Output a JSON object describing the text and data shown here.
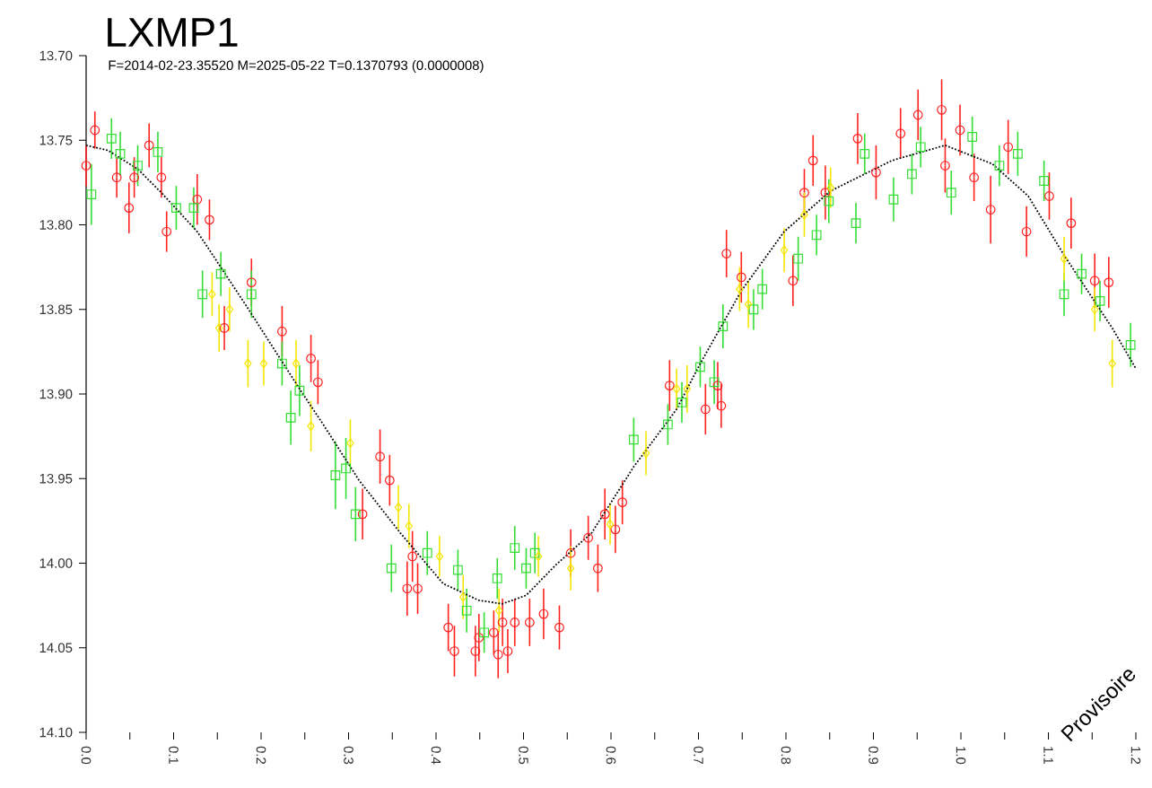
{
  "chart_data": {
    "type": "scatter",
    "title": "LXMP1",
    "subtitle": "F=2014-02-23.35520 M=2025-05-22 T=0.1370793 (0.0000008)",
    "annotations": [
      "Provisoire"
    ],
    "xlim": [
      0,
      1.2
    ],
    "ylim": [
      14.1,
      13.7
    ],
    "xticks": [
      {
        "value": 0,
        "label": "0.0"
      },
      {
        "value": 0.05,
        "label": null
      },
      {
        "value": 0.1,
        "label": "0.1"
      },
      {
        "value": 0.15,
        "label": null
      },
      {
        "value": 0.2,
        "label": "0.2"
      },
      {
        "value": 0.25,
        "label": null
      },
      {
        "value": 0.3,
        "label": "0.3"
      },
      {
        "value": 0.35,
        "label": null
      },
      {
        "value": 0.4,
        "label": "0.4"
      },
      {
        "value": 0.45,
        "label": null
      },
      {
        "value": 0.5,
        "label": "0.5"
      },
      {
        "value": 0.55,
        "label": null
      },
      {
        "value": 0.6,
        "label": "0.6"
      },
      {
        "value": 0.65,
        "label": null
      },
      {
        "value": 0.7,
        "label": "0.7"
      },
      {
        "value": 0.75,
        "label": null
      },
      {
        "value": 0.8,
        "label": "0.8"
      },
      {
        "value": 0.85,
        "label": null
      },
      {
        "value": 0.9,
        "label": "0.9"
      },
      {
        "value": 0.95,
        "label": null
      },
      {
        "value": 1.0,
        "label": "1.0"
      },
      {
        "value": 1.05,
        "label": null
      },
      {
        "value": 1.1,
        "label": "1.1"
      },
      {
        "value": 1.15,
        "label": null
      },
      {
        "value": 1.2,
        "label": "1.2"
      }
    ],
    "yticks": [
      {
        "value": 13.7,
        "label": "13.70"
      },
      {
        "value": 13.75,
        "label": "13.75"
      },
      {
        "value": 13.8,
        "label": "13.80"
      },
      {
        "value": 13.85,
        "label": "13.85"
      },
      {
        "value": 13.9,
        "label": "13.90"
      },
      {
        "value": 13.95,
        "label": "13.95"
      },
      {
        "value": 14.0,
        "label": "14.00"
      },
      {
        "value": 14.05,
        "label": "14.05"
      },
      {
        "value": 14.1,
        "label": "14.10"
      }
    ],
    "series": [
      {
        "color": "#ff2020",
        "marker": "circle",
        "x": [
          0.0,
          0.01,
          0.035,
          0.049,
          0.055,
          0.072,
          0.086,
          0.092,
          0.127,
          0.141,
          0.158,
          0.189,
          0.224,
          0.257,
          0.265,
          0.316,
          0.336,
          0.347,
          0.367,
          0.373,
          0.379,
          0.414,
          0.421,
          0.445,
          0.449,
          0.466,
          0.471,
          0.476,
          0.482,
          0.49,
          0.507,
          0.523,
          0.541,
          0.554,
          0.574,
          0.585,
          0.593,
          0.605,
          0.613,
          0.667,
          0.708,
          0.722,
          0.726,
          0.732,
          0.749,
          0.808,
          0.821,
          0.831,
          0.845,
          0.882,
          0.903,
          0.931,
          0.951,
          0.978,
          0.982,
          0.999,
          1.015,
          1.034,
          1.054,
          1.075,
          1.101,
          1.126,
          1.153,
          1.169
        ],
        "values": [
          13.765,
          13.744,
          13.772,
          13.79,
          13.772,
          13.753,
          13.772,
          13.804,
          13.785,
          13.797,
          13.861,
          13.834,
          13.863,
          13.879,
          13.893,
          13.971,
          13.937,
          13.951,
          14.015,
          13.996,
          14.015,
          14.038,
          14.052,
          14.052,
          14.044,
          14.041,
          14.054,
          14.035,
          14.052,
          14.035,
          14.035,
          14.03,
          14.038,
          13.994,
          13.985,
          14.003,
          13.971,
          13.98,
          13.964,
          13.895,
          13.909,
          13.895,
          13.907,
          13.817,
          13.831,
          13.833,
          13.781,
          13.762,
          13.781,
          13.749,
          13.769,
          13.746,
          13.735,
          13.732,
          13.765,
          13.744,
          13.772,
          13.791,
          13.754,
          13.804,
          13.783,
          13.799,
          13.833,
          13.834
        ],
        "errors": [
          0.012,
          0.011,
          0.012,
          0.015,
          0.012,
          0.013,
          0.012,
          0.012,
          0.015,
          0.012,
          0.013,
          0.014,
          0.015,
          0.014,
          0.013,
          0.015,
          0.016,
          0.015,
          0.016,
          0.015,
          0.015,
          0.014,
          0.015,
          0.015,
          0.014,
          0.013,
          0.014,
          0.014,
          0.013,
          0.014,
          0.014,
          0.015,
          0.013,
          0.014,
          0.013,
          0.014,
          0.015,
          0.014,
          0.013,
          0.015,
          0.015,
          0.014,
          0.013,
          0.014,
          0.015,
          0.015,
          0.014,
          0.015,
          0.016,
          0.015,
          0.016,
          0.015,
          0.015,
          0.018,
          0.016,
          0.015,
          0.014,
          0.02,
          0.016,
          0.015,
          0.014,
          0.015,
          0.016,
          0.015
        ]
      },
      {
        "color": "#33dd33",
        "marker": "square",
        "x": [
          0.006,
          0.029,
          0.039,
          0.059,
          0.082,
          0.103,
          0.123,
          0.133,
          0.154,
          0.189,
          0.224,
          0.234,
          0.244,
          0.285,
          0.297,
          0.308,
          0.349,
          0.39,
          0.425,
          0.435,
          0.455,
          0.47,
          0.49,
          0.503,
          0.513,
          0.626,
          0.665,
          0.681,
          0.702,
          0.718,
          0.728,
          0.763,
          0.773,
          0.814,
          0.835,
          0.849,
          0.88,
          0.89,
          0.923,
          0.944,
          0.954,
          0.989,
          1.013,
          1.044,
          1.065,
          1.095,
          1.118,
          1.138,
          1.159,
          1.194
        ],
        "values": [
          13.782,
          13.749,
          13.758,
          13.765,
          13.757,
          13.79,
          13.79,
          13.841,
          13.829,
          13.841,
          13.882,
          13.914,
          13.898,
          13.948,
          13.944,
          13.971,
          14.003,
          13.994,
          14.004,
          14.028,
          14.041,
          14.009,
          13.991,
          14.003,
          13.994,
          13.927,
          13.918,
          13.905,
          13.884,
          13.893,
          13.86,
          13.85,
          13.838,
          13.82,
          13.806,
          13.786,
          13.799,
          13.758,
          13.785,
          13.77,
          13.754,
          13.781,
          13.748,
          13.765,
          13.758,
          13.774,
          13.841,
          13.829,
          13.845,
          13.871
        ],
        "errors": [
          0.018,
          0.012,
          0.013,
          0.012,
          0.012,
          0.013,
          0.012,
          0.014,
          0.013,
          0.014,
          0.013,
          0.016,
          0.015,
          0.02,
          0.018,
          0.016,
          0.014,
          0.013,
          0.012,
          0.013,
          0.012,
          0.012,
          0.013,
          0.012,
          0.012,
          0.013,
          0.012,
          0.012,
          0.012,
          0.013,
          0.013,
          0.012,
          0.012,
          0.013,
          0.012,
          0.013,
          0.012,
          0.012,
          0.013,
          0.012,
          0.012,
          0.013,
          0.012,
          0.012,
          0.013,
          0.012,
          0.013,
          0.012,
          0.012,
          0.013
        ]
      },
      {
        "color": "#f5e600",
        "marker": "diamond",
        "x": [
          0.144,
          0.152,
          0.164,
          0.185,
          0.203,
          0.24,
          0.257,
          0.302,
          0.357,
          0.369,
          0.404,
          0.431,
          0.472,
          0.517,
          0.554,
          0.599,
          0.64,
          0.675,
          0.687,
          0.747,
          0.757,
          0.798,
          0.821,
          0.851,
          1.118,
          1.153,
          1.173
        ],
        "values": [
          13.841,
          13.861,
          13.85,
          13.882,
          13.882,
          13.882,
          13.919,
          13.929,
          13.967,
          13.978,
          13.996,
          14.02,
          14.028,
          13.996,
          14.003,
          13.977,
          13.935,
          13.897,
          13.897,
          13.838,
          13.847,
          13.815,
          13.794,
          13.778,
          13.82,
          13.85,
          13.882
        ],
        "errors": [
          0.013,
          0.014,
          0.013,
          0.014,
          0.013,
          0.014,
          0.015,
          0.014,
          0.013,
          0.013,
          0.012,
          0.013,
          0.013,
          0.012,
          0.013,
          0.012,
          0.013,
          0.012,
          0.014,
          0.013,
          0.014,
          0.013,
          0.013,
          0.012,
          0.013,
          0.013,
          0.014
        ]
      },
      {
        "type": "line",
        "color": "#000000",
        "marker": "none",
        "line_style": "dotted",
        "x": [
          0.0,
          0.025,
          0.059,
          0.086,
          0.127,
          0.182,
          0.244,
          0.271,
          0.312,
          0.359,
          0.408,
          0.449,
          0.476,
          0.503,
          0.537,
          0.578,
          0.626,
          0.675,
          0.702,
          0.749,
          0.798,
          0.851,
          0.921,
          0.982,
          1.036,
          1.077,
          1.118,
          1.173,
          1.2
        ],
        "values": [
          13.753,
          13.756,
          13.767,
          13.781,
          13.804,
          13.847,
          13.897,
          13.918,
          13.951,
          13.982,
          14.012,
          14.022,
          14.024,
          14.019,
          14.001,
          13.982,
          13.943,
          13.909,
          13.882,
          13.839,
          13.804,
          13.78,
          13.762,
          13.753,
          13.764,
          13.783,
          13.818,
          13.861,
          13.885
        ]
      }
    ]
  }
}
